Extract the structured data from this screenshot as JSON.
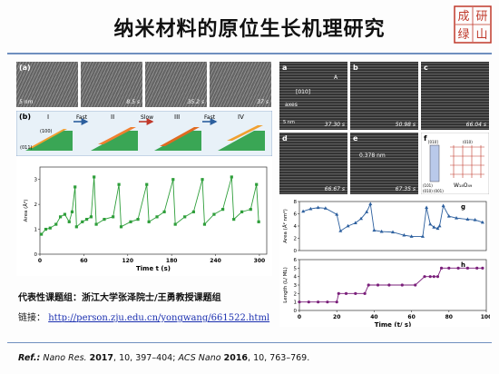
{
  "title": "纳米材料的原位生长机理研究",
  "seal_chars": [
    "成",
    "研",
    "绿",
    "山"
  ],
  "left": {
    "panel_a_label": "(a)",
    "panel_a_scale": "5 nm",
    "panel_a_frames": [
      "I",
      "II",
      "III",
      "IV"
    ],
    "panel_a_times": [
      "0 s",
      "8.5 s",
      "35.2 s",
      "37 s"
    ],
    "panel_b_label": "(b)",
    "panel_b_frames": [
      "I",
      "II",
      "III",
      "IV"
    ],
    "panel_b_arrows": [
      "Fast",
      "Slow",
      "Fast"
    ],
    "panel_b_facet": "(100)",
    "panel_b_ref": "(011)",
    "chart_xlabel": "Time t (s)",
    "chart_ylabel": "Area (Å²)"
  },
  "right": {
    "tem_panels": [
      {
        "label": "a",
        "time": "37.30 s"
      },
      {
        "label": "b",
        "time": "50.98 s"
      },
      {
        "label": "c",
        "time": "66.04 s"
      },
      {
        "label": "d",
        "time": "66.67 s"
      },
      {
        "label": "e",
        "time": "67.35 s"
      }
    ],
    "panel_a_dir": "[010]",
    "panel_a_axis": "axes",
    "panel_a_corner": "A",
    "panel_a_scale": "5 nm",
    "panel_e_spacing": "0.378 nm",
    "panel_f_label": "f",
    "panel_f_formula": "W₁₈O₄₉",
    "panel_f_dirs": [
      "[010]",
      "(010)",
      "(101)",
      "(001)",
      "(010)"
    ],
    "chart_g_label": "g",
    "chart_h_label": "h",
    "chart_g_ylabel": "Area (Å² nm²)",
    "chart_h_ylabel": "Length (L/ ML)",
    "chart_xlabel": "Time (t/ s)"
  },
  "footer": {
    "group": "代表性课题组：浙江大学张泽院士/王勇教授课题组",
    "link_label": "链接：",
    "link_url": "http://person.zju.edu.cn/yongwang/661522.html",
    "ref_prefix": "Ref.:",
    "ref_j1": "Nano Res.",
    "ref_y1": "2017",
    "ref_v1": ", 10, 397–404; ",
    "ref_j2": "ACS Nano",
    "ref_y2": "2016",
    "ref_v2": ", 10, 763–769."
  },
  "colors": {
    "accent": "#6f8fbf",
    "green": "#2e9e3a",
    "blue": "#2c5f9e",
    "purple": "#7a1f7a",
    "link": "#1a2fb0",
    "seal": "#c0392b"
  },
  "chart_data": [
    {
      "type": "line",
      "xlabel": "Time t (s)",
      "ylabel": "Area (Å²)",
      "xlim": [
        0,
        310
      ],
      "ylim": [
        0,
        3.5
      ],
      "xticks": [
        0,
        60,
        120,
        180,
        240,
        300
      ],
      "yticks": [
        0,
        1,
        2,
        3
      ],
      "series": [
        {
          "values": [
            [
              2,
              0.8
            ],
            [
              8,
              1.0
            ],
            [
              14,
              1.05
            ],
            [
              22,
              1.2
            ],
            [
              28,
              1.5
            ],
            [
              34,
              1.6
            ],
            [
              40,
              1.3
            ],
            [
              44,
              1.7
            ],
            [
              48,
              2.7
            ],
            [
              50,
              1.1
            ],
            [
              58,
              1.3
            ],
            [
              64,
              1.4
            ],
            [
              70,
              1.5
            ],
            [
              74,
              3.1
            ],
            [
              77,
              1.2
            ],
            [
              88,
              1.4
            ],
            [
              100,
              1.5
            ],
            [
              108,
              2.8
            ],
            [
              111,
              1.1
            ],
            [
              124,
              1.3
            ],
            [
              134,
              1.4
            ],
            [
              146,
              2.8
            ],
            [
              149,
              1.3
            ],
            [
              160,
              1.5
            ],
            [
              170,
              1.7
            ],
            [
              182,
              3.0
            ],
            [
              185,
              1.2
            ],
            [
              198,
              1.5
            ],
            [
              210,
              1.7
            ],
            [
              222,
              3.0
            ],
            [
              225,
              1.2
            ],
            [
              238,
              1.6
            ],
            [
              250,
              1.8
            ],
            [
              262,
              3.1
            ],
            [
              265,
              1.4
            ],
            [
              276,
              1.7
            ],
            [
              288,
              1.8
            ],
            [
              296,
              2.8
            ],
            [
              299,
              1.3
            ]
          ]
        }
      ]
    },
    {
      "type": "line",
      "xlabel": "",
      "ylabel": "Area (Å² nm²)",
      "xlim": [
        0,
        100
      ],
      "ylim": [
        0,
        8
      ],
      "yticks": [
        0,
        2,
        4,
        6,
        8
      ],
      "series": [
        {
          "values": [
            [
              2,
              6.4
            ],
            [
              6,
              6.8
            ],
            [
              10,
              7.0
            ],
            [
              14,
              6.9
            ],
            [
              20,
              5.9
            ],
            [
              22,
              3.2
            ],
            [
              26,
              4.0
            ],
            [
              30,
              4.5
            ],
            [
              33,
              5.2
            ],
            [
              36,
              6.3
            ],
            [
              38,
              7.6
            ],
            [
              40,
              3.3
            ],
            [
              44,
              3.1
            ],
            [
              50,
              3.0
            ],
            [
              56,
              2.5
            ],
            [
              60,
              2.3
            ],
            [
              66,
              2.3
            ],
            [
              68,
              7.0
            ],
            [
              70,
              4.3
            ],
            [
              72,
              3.8
            ],
            [
              74,
              3.6
            ],
            [
              75,
              4.0
            ],
            [
              77,
              7.3
            ],
            [
              80,
              5.6
            ],
            [
              84,
              5.3
            ],
            [
              90,
              5.1
            ],
            [
              94,
              5.0
            ],
            [
              98,
              4.6
            ]
          ]
        }
      ]
    },
    {
      "type": "line",
      "xlabel": "Time (t/ s)",
      "ylabel": "Length (L/ ML)",
      "xlim": [
        0,
        100
      ],
      "ylim": [
        0,
        6
      ],
      "xticks": [
        0,
        20,
        40,
        60,
        80,
        100
      ],
      "yticks": [
        0,
        1,
        2,
        3,
        4,
        5,
        6
      ],
      "series": [
        {
          "values": [
            [
              0,
              1
            ],
            [
              5,
              1
            ],
            [
              10,
              1
            ],
            [
              15,
              1
            ],
            [
              20,
              1
            ],
            [
              21,
              2
            ],
            [
              25,
              2
            ],
            [
              30,
              2
            ],
            [
              35,
              2
            ],
            [
              37,
              3
            ],
            [
              42,
              3
            ],
            [
              48,
              3
            ],
            [
              55,
              3
            ],
            [
              62,
              3
            ],
            [
              67,
              4
            ],
            [
              70,
              4
            ],
            [
              72,
              4
            ],
            [
              74,
              4
            ],
            [
              76,
              5
            ],
            [
              80,
              5
            ],
            [
              85,
              5
            ],
            [
              90,
              5
            ],
            [
              95,
              5
            ],
            [
              98,
              5
            ]
          ]
        }
      ]
    }
  ]
}
